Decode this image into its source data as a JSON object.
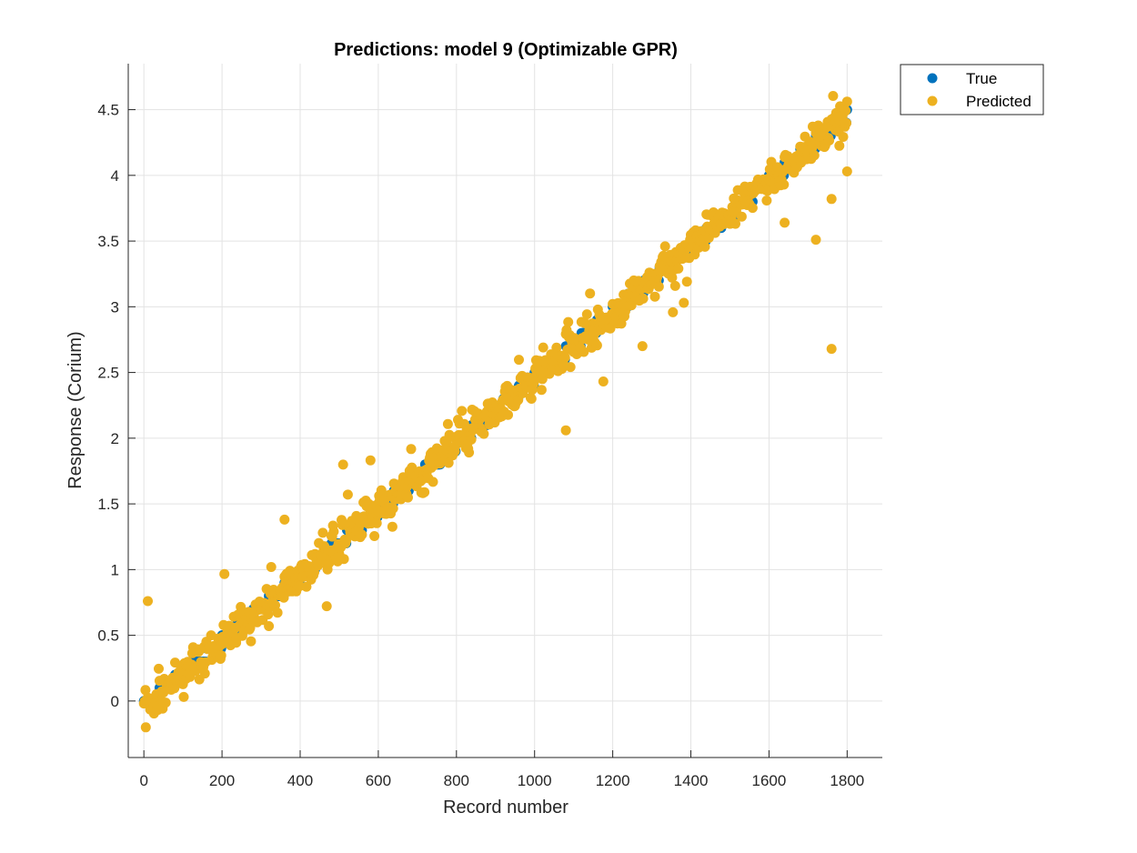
{
  "chart_data": {
    "type": "scatter",
    "title": "Predictions: model 9 (Optimizable GPR)",
    "xlabel": "Record number",
    "ylabel": "Response (Corium)",
    "xlim": [
      -40,
      1890
    ],
    "ylim": [
      -0.43,
      4.85
    ],
    "xticks": [
      0,
      200,
      400,
      600,
      800,
      1000,
      1200,
      1400,
      1600,
      1800
    ],
    "yticks": [
      0,
      0.5,
      1,
      1.5,
      2,
      2.5,
      3,
      3.5,
      4,
      4.5
    ],
    "xtick_labels": [
      "0",
      "200",
      "400",
      "600",
      "800",
      "1000",
      "1200",
      "1400",
      "1600",
      "1800"
    ],
    "ytick_labels": [
      "0",
      "0.5",
      "1",
      "1.5",
      "2",
      "2.5",
      "3",
      "3.5",
      "4",
      "4.5"
    ],
    "grid": true,
    "legend_position": "outside-top-right",
    "n_records": 1800,
    "series": [
      {
        "name": "True",
        "color": "#0072bd",
        "description": "step-increasing true response from 0 to 4.5 over record numbers 0 to 1800 (about 0.1 per 40 records)"
      },
      {
        "name": "Predicted",
        "color": "#edb120",
        "description": "predicted values scattered tightly around true values, with occasional outliers"
      }
    ],
    "notable_predicted_outliers": [
      {
        "x": 5,
        "y": -0.2
      },
      {
        "x": 10,
        "y": 0.76
      },
      {
        "x": 360,
        "y": 1.38
      },
      {
        "x": 1080,
        "y": 2.06
      },
      {
        "x": 1640,
        "y": 3.64
      },
      {
        "x": 1720,
        "y": 3.51
      },
      {
        "x": 1760,
        "y": 2.68
      },
      {
        "x": 1760,
        "y": 3.82
      },
      {
        "x": 1800,
        "y": 4.03
      }
    ]
  }
}
